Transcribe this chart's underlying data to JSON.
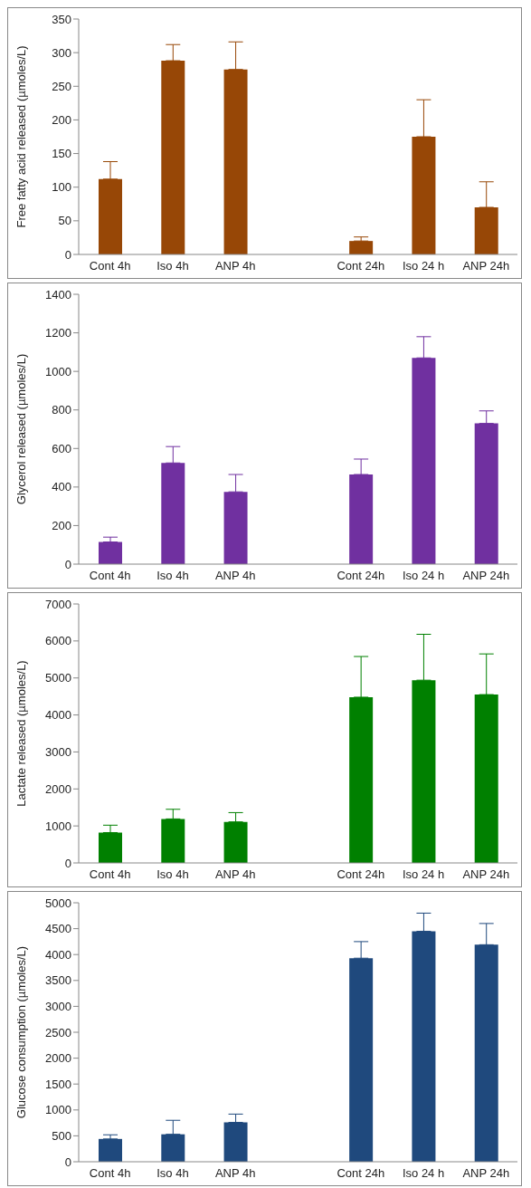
{
  "chart_data": [
    {
      "type": "bar",
      "ylabel": "Free fatty acid released (µmoles/L)",
      "categories": [
        "Cont 4h",
        "Iso 4h",
        "ANP 4h",
        null,
        "Cont 24h",
        "Iso 24 h",
        "ANP 24h"
      ],
      "ylim": [
        0,
        350
      ],
      "yticks": [
        0,
        50,
        100,
        150,
        200,
        250,
        300,
        350
      ],
      "series": [
        {
          "color": "#974706",
          "values": [
            112,
            288,
            275,
            null,
            20,
            175,
            70
          ],
          "errors": [
            [
              112,
              138
            ],
            [
              288,
              312
            ],
            [
              275,
              316
            ],
            null,
            [
              20,
              26
            ],
            [
              175,
              230
            ],
            [
              70,
              108
            ]
          ]
        }
      ]
    },
    {
      "type": "bar",
      "ylabel": "Glycerol released (µmoles/L)",
      "categories": [
        "Cont 4h",
        "Iso 4h",
        "ANP 4h",
        null,
        "Cont 24h",
        "Iso 24 h",
        "ANP 24h"
      ],
      "ylim": [
        0,
        1400
      ],
      "yticks": [
        0,
        200,
        400,
        600,
        800,
        1000,
        1200,
        1400
      ],
      "series": [
        {
          "color": "#7030a0",
          "values": [
            115,
            525,
            375,
            null,
            465,
            1070,
            730
          ],
          "errors": [
            [
              115,
              140
            ],
            [
              525,
              610
            ],
            [
              375,
              465
            ],
            null,
            [
              465,
              545
            ],
            [
              1070,
              1180
            ],
            [
              730,
              795
            ]
          ]
        }
      ]
    },
    {
      "type": "bar",
      "ylabel": "Lactate released (µmoles/L)",
      "categories": [
        "Cont 4h",
        "Iso 4h",
        "ANP 4h",
        null,
        "Cont 24h",
        "Iso 24 h",
        "ANP 24h"
      ],
      "ylim": [
        0,
        7000
      ],
      "yticks": [
        0,
        1000,
        2000,
        3000,
        4000,
        5000,
        6000,
        7000
      ],
      "series": [
        {
          "color": "#008000",
          "values": [
            820,
            1190,
            1110,
            null,
            4480,
            4940,
            4550
          ],
          "errors": [
            [
              820,
              1020
            ],
            [
              1190,
              1450
            ],
            [
              1110,
              1360
            ],
            null,
            [
              4480,
              5580
            ],
            [
              4940,
              6180
            ],
            [
              4550,
              5650
            ]
          ]
        }
      ]
    },
    {
      "type": "bar",
      "ylabel": "Glucose consumption (µmoles/L)",
      "categories": [
        "Cont 4h",
        "Iso 4h",
        "ANP 4h",
        null,
        "Cont 24h",
        "Iso 24 h",
        "ANP 24h"
      ],
      "ylim": [
        0,
        5000
      ],
      "yticks": [
        0,
        500,
        1000,
        1500,
        2000,
        2500,
        3000,
        3500,
        4000,
        4500,
        5000
      ],
      "series": [
        {
          "color": "#1f497d",
          "values": [
            440,
            530,
            760,
            null,
            3930,
            4450,
            4190
          ],
          "errors": [
            [
              440,
              520
            ],
            [
              530,
              800
            ],
            [
              760,
              920
            ],
            null,
            [
              3930,
              4250
            ],
            [
              4450,
              4800
            ],
            [
              4190,
              4600
            ]
          ]
        }
      ]
    }
  ]
}
